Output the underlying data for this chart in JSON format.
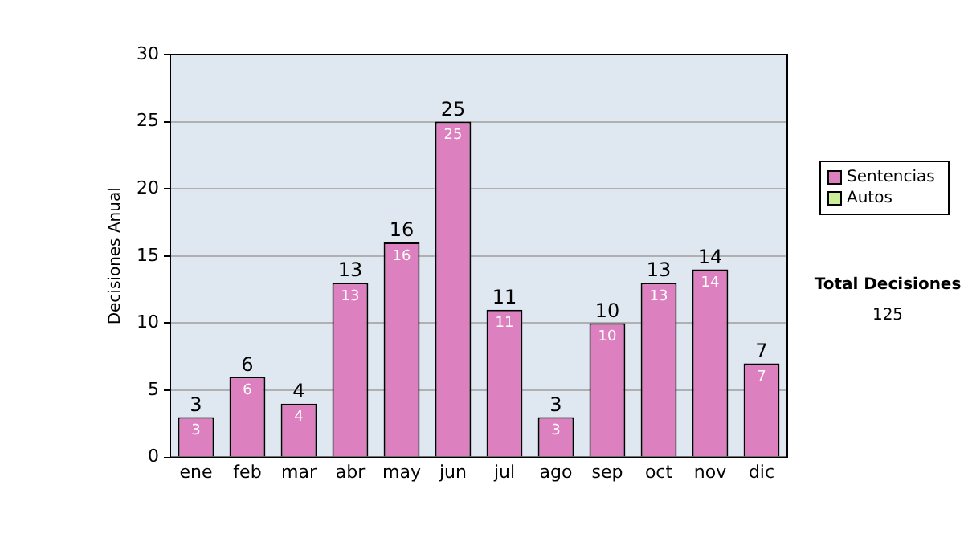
{
  "chart_data": {
    "type": "bar",
    "ylabel": "Decisiones Anual",
    "categories": [
      "ene",
      "feb",
      "mar",
      "abr",
      "may",
      "jun",
      "jul",
      "ago",
      "sep",
      "oct",
      "nov",
      "dic"
    ],
    "series": [
      {
        "name": "Sentencias",
        "color": "#dd80c0",
        "values": [
          3,
          6,
          4,
          13,
          16,
          25,
          11,
          3,
          10,
          13,
          14,
          7
        ],
        "value_labels": [
          "3",
          "6",
          "4",
          "13",
          "16",
          "25",
          "11",
          "3",
          "10",
          "13",
          "14",
          "7"
        ]
      },
      {
        "name": "Autos",
        "color": "#ccee99",
        "values": [
          0,
          0,
          0,
          0,
          0,
          0,
          0,
          0,
          0,
          0,
          0,
          0
        ]
      }
    ],
    "stacked": true,
    "totals": [
      "3",
      "6",
      "4",
      "13",
      "16",
      "25",
      "11",
      "3",
      "10",
      "13",
      "14",
      "7"
    ],
    "ylim": [
      0,
      30
    ],
    "yticks": [
      0,
      5,
      10,
      15,
      20,
      25,
      30
    ],
    "grid": "y",
    "legend": "right",
    "annotations": [
      "Total Decisiones",
      "125"
    ]
  }
}
